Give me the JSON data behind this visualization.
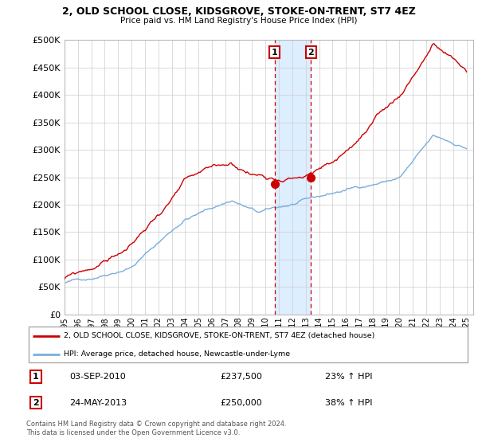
{
  "title": "2, OLD SCHOOL CLOSE, KIDSGROVE, STOKE-ON-TRENT, ST7 4EZ",
  "subtitle": "Price paid vs. HM Land Registry's House Price Index (HPI)",
  "ytick_values": [
    0,
    50000,
    100000,
    150000,
    200000,
    250000,
    300000,
    350000,
    400000,
    450000,
    500000
  ],
  "ylim": [
    0,
    500000
  ],
  "legend_line1": "2, OLD SCHOOL CLOSE, KIDSGROVE, STOKE-ON-TRENT, ST7 4EZ (detached house)",
  "legend_line2": "HPI: Average price, detached house, Newcastle-under-Lyme",
  "purchase1_date": "03-SEP-2010",
  "purchase1_price": 237500,
  "purchase1_hpi": "23% ↑ HPI",
  "purchase2_date": "24-MAY-2013",
  "purchase2_price": 250000,
  "purchase2_hpi": "38% ↑ HPI",
  "footer": "Contains HM Land Registry data © Crown copyright and database right 2024.\nThis data is licensed under the Open Government Licence v3.0.",
  "house_color": "#cc0000",
  "hpi_color": "#7aaedc",
  "highlight_color": "#ddeeff",
  "purchase1_x": 2010.67,
  "purchase2_x": 2013.39,
  "xmin": 1995,
  "xmax": 2025.5,
  "xticks": [
    1995,
    1996,
    1997,
    1998,
    1999,
    2000,
    2001,
    2002,
    2003,
    2004,
    2005,
    2006,
    2007,
    2008,
    2009,
    2010,
    2011,
    2012,
    2013,
    2014,
    2015,
    2016,
    2017,
    2018,
    2019,
    2020,
    2021,
    2022,
    2023,
    2024,
    2025
  ]
}
